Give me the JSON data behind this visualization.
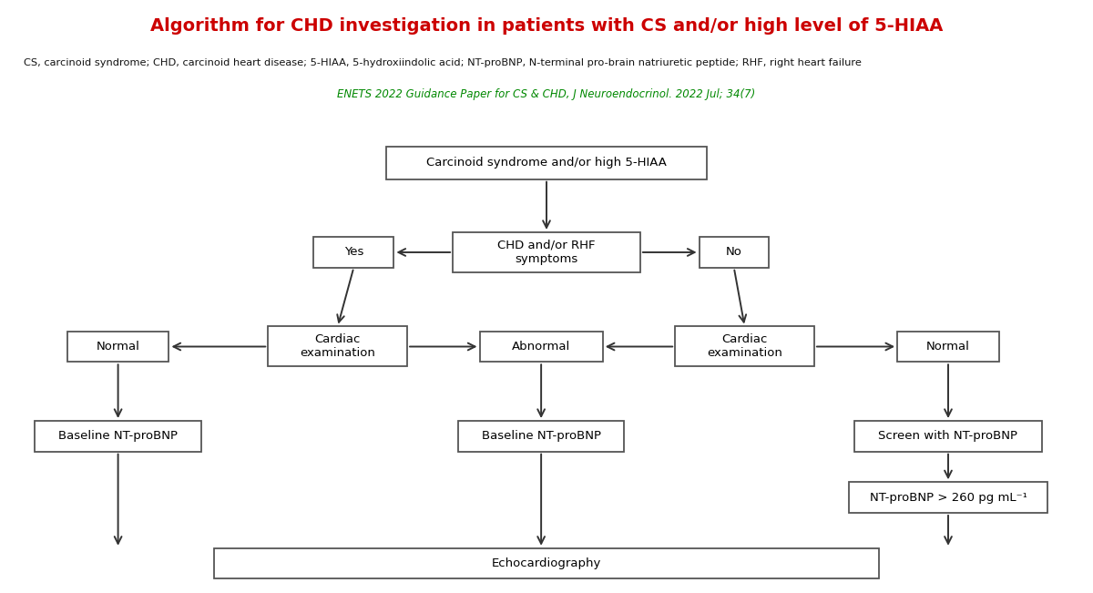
{
  "title": "Algorithm for CHD investigation in patients with CS and/or high level of 5-HIAA",
  "subtitle": "CS, carcinoid syndrome; CHD, carcinoid heart disease; 5-HIAA, 5-hydroxiindolic acid; NT-proBNP, N-terminal pro-brain natriuretic peptide; RHF, right heart failure",
  "reference": "ENETS 2022 Guidance Paper for CS & CHD, J Neuroendocrinol. 2022 Jul; 34(7)",
  "title_color": "#cc0000",
  "subtitle_color": "#111111",
  "reference_color": "#008800",
  "header_border_color": "#bb2222",
  "box_edge_color": "#555555",
  "arrow_color": "#333333",
  "bg_color": "#ffffff",
  "nodes": {
    "top": {
      "label": "Carcinoid syndrome and/or high 5-HIAA"
    },
    "chd": {
      "label": "CHD and/or RHF\nsymptoms"
    },
    "yes": {
      "label": "Yes"
    },
    "no": {
      "label": "No"
    },
    "cardiac_left": {
      "label": "Cardiac\nexamination"
    },
    "abnormal": {
      "label": "Abnormal"
    },
    "cardiac_right": {
      "label": "Cardiac\nexamination"
    },
    "normal_left": {
      "label": "Normal"
    },
    "normal_right": {
      "label": "Normal"
    },
    "baseline_left": {
      "label": "Baseline NT-proBNP"
    },
    "baseline_mid": {
      "label": "Baseline NT-proBNP"
    },
    "screen": {
      "label": "Screen with NT-proBNP"
    },
    "ntprobnp": {
      "label": "NT-proBNP > 260 pg mL⁻¹"
    },
    "echo": {
      "label": "Echocardiography"
    }
  }
}
